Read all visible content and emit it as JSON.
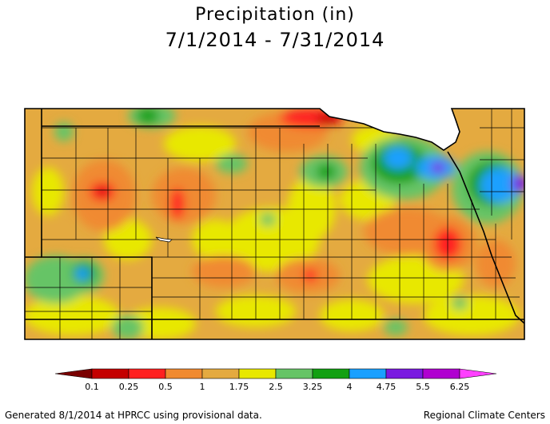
{
  "title": "Precipitation (in)",
  "date_range": "7/1/2014 - 7/31/2014",
  "legend": {
    "ticks": [
      "0.1",
      "0.25",
      "0.5",
      "1",
      "1.75",
      "2.5",
      "3.25",
      "4",
      "4.75",
      "5.5",
      "6.25"
    ],
    "colors": [
      "#7a0000",
      "#c40000",
      "#ff2020",
      "#f08a30",
      "#e4aa40",
      "#e8e800",
      "#66c466",
      "#12a012",
      "#1aa0ff",
      "#7a1ae0",
      "#b000d0",
      "#ff40ff"
    ]
  },
  "footer": {
    "left": "Generated 8/1/2014 at HPRCC using provisional data.",
    "right": "Regional Climate Centers"
  }
}
